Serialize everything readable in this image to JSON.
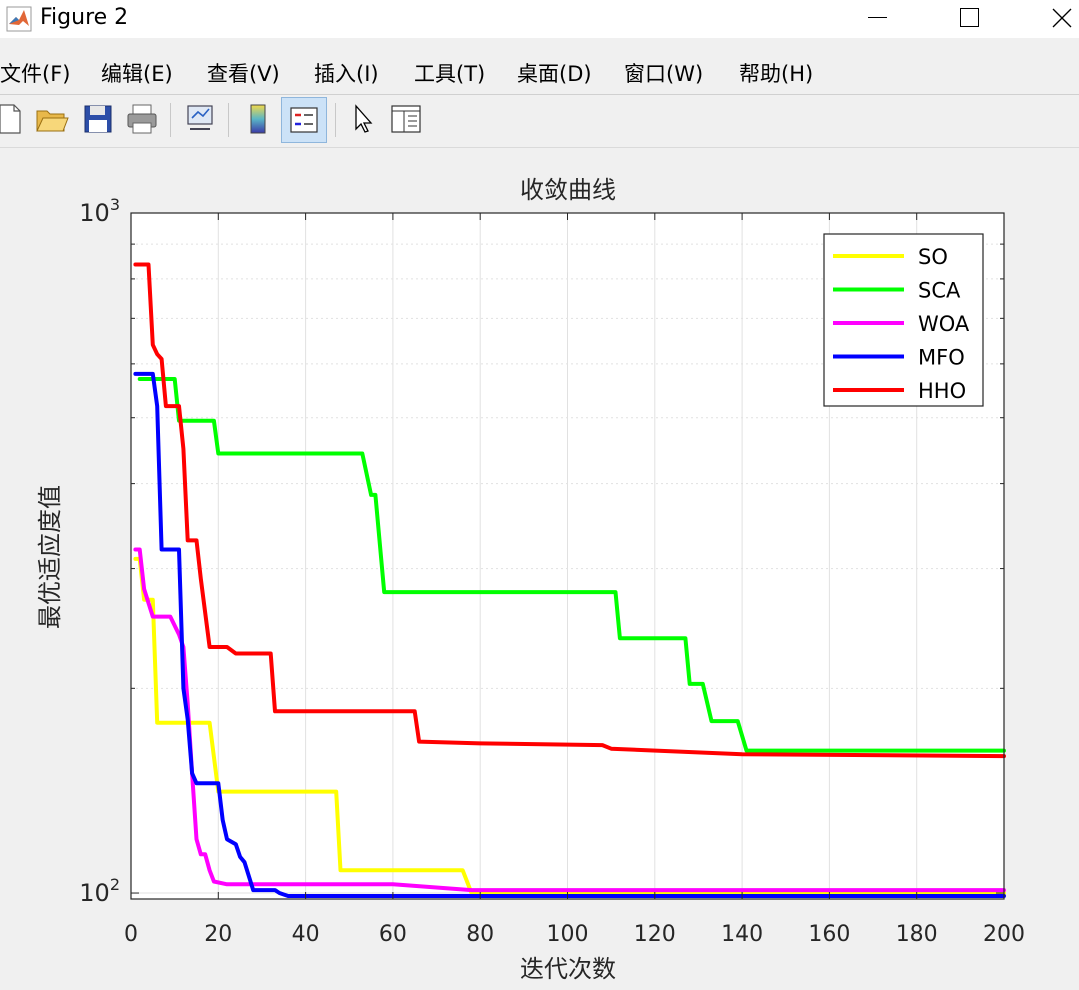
{
  "window": {
    "title": "Figure 2",
    "minimize_glyph": "—",
    "maximize_glyph": "☐",
    "close_glyph": "✕"
  },
  "menu": [
    "文件(F)",
    "编辑(E)",
    "查看(V)",
    "插入(I)",
    "工具(T)",
    "桌面(D)",
    "窗口(W)",
    "帮助(H)"
  ],
  "toolbar_icons": [
    "new-figure-icon",
    "open-icon",
    "save-icon",
    "print-icon",
    "link-plot-icon",
    "colorbar-icon",
    "legend-icon",
    "pointer-icon",
    "property-inspector-icon"
  ],
  "chart_data": {
    "type": "line",
    "title": "收敛曲线",
    "xlabel": "迭代次数",
    "ylabel": "最优适应度值",
    "yscale": "log",
    "xlim": [
      0,
      200
    ],
    "ylim": [
      98,
      1000
    ],
    "xticks": [
      0,
      20,
      40,
      60,
      80,
      100,
      120,
      140,
      160,
      180,
      200
    ],
    "ytick_labels": [
      {
        "value": 1000,
        "base": "10",
        "exp": "3"
      },
      {
        "value": 100,
        "base": "10",
        "exp": "2"
      }
    ],
    "grid": true,
    "legend_position": "top-right",
    "series": [
      {
        "name": "SO",
        "color": "#ffff00",
        "points": [
          [
            1,
            310
          ],
          [
            2,
            310
          ],
          [
            3,
            270
          ],
          [
            5,
            270
          ],
          [
            6,
            178
          ],
          [
            18,
            178
          ],
          [
            20,
            141
          ],
          [
            47,
            141
          ],
          [
            48,
            108
          ],
          [
            76,
            108
          ],
          [
            78,
            100
          ],
          [
            200,
            100
          ]
        ]
      },
      {
        "name": "SCA",
        "color": "#00ff00",
        "points": [
          [
            2,
            570
          ],
          [
            10,
            570
          ],
          [
            11,
            495
          ],
          [
            19,
            495
          ],
          [
            20,
            443
          ],
          [
            53,
            443
          ],
          [
            55,
            385
          ],
          [
            56,
            385
          ],
          [
            58,
            277
          ],
          [
            111,
            277
          ],
          [
            112,
            237
          ],
          [
            127,
            237
          ],
          [
            128,
            203
          ],
          [
            131,
            203
          ],
          [
            133,
            179
          ],
          [
            139,
            179
          ],
          [
            141,
            162
          ],
          [
            200,
            162
          ]
        ]
      },
      {
        "name": "WOA",
        "color": "#ff00ff",
        "points": [
          [
            1,
            320
          ],
          [
            2,
            320
          ],
          [
            3,
            280
          ],
          [
            5,
            255
          ],
          [
            9,
            255
          ],
          [
            11,
            240
          ],
          [
            12,
            230
          ],
          [
            13,
            190
          ],
          [
            14,
            150
          ],
          [
            15,
            120
          ],
          [
            16,
            114
          ],
          [
            17,
            114
          ],
          [
            18,
            108
          ],
          [
            19,
            104
          ],
          [
            22,
            103
          ],
          [
            38,
            103
          ],
          [
            60,
            103
          ],
          [
            78,
            101
          ],
          [
            200,
            101
          ]
        ]
      },
      {
        "name": "MFO",
        "color": "#0000ff",
        "points": [
          [
            1,
            580
          ],
          [
            5,
            580
          ],
          [
            6,
            520
          ],
          [
            7,
            320
          ],
          [
            11,
            320
          ],
          [
            12,
            200
          ],
          [
            13,
            180
          ],
          [
            14,
            150
          ],
          [
            15,
            145
          ],
          [
            20,
            145
          ],
          [
            21,
            128
          ],
          [
            22,
            120
          ],
          [
            24,
            118
          ],
          [
            25,
            113
          ],
          [
            26,
            111
          ],
          [
            28,
            101
          ],
          [
            33,
            101
          ],
          [
            34,
            100
          ],
          [
            36,
            99
          ],
          [
            200,
            99
          ]
        ]
      },
      {
        "name": "HHO",
        "color": "#ff0000",
        "points": [
          [
            1,
            840
          ],
          [
            4,
            840
          ],
          [
            5,
            640
          ],
          [
            6,
            620
          ],
          [
            7,
            610
          ],
          [
            8,
            520
          ],
          [
            11,
            520
          ],
          [
            12,
            450
          ],
          [
            13,
            330
          ],
          [
            15,
            330
          ],
          [
            16,
            290
          ],
          [
            18,
            230
          ],
          [
            22,
            230
          ],
          [
            24,
            225
          ],
          [
            32,
            225
          ],
          [
            33,
            185
          ],
          [
            40,
            185
          ],
          [
            65,
            185
          ],
          [
            66,
            167
          ],
          [
            80,
            166
          ],
          [
            108,
            165
          ],
          [
            110,
            163
          ],
          [
            140,
            160
          ],
          [
            200,
            159
          ]
        ]
      }
    ]
  }
}
